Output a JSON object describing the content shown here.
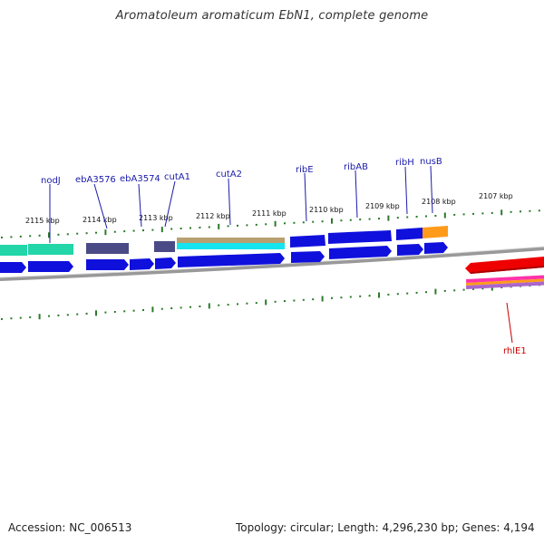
{
  "title": "Aromatoleum aromaticum EbN1, complete genome",
  "footer": {
    "accession": "Accession: NC_006513",
    "topology": "Topology: circular; Length: 4,296,230 bp; Genes: 4,194"
  },
  "colors": {
    "cds_forward": "#1010dd",
    "cds_reverse": "#1010dd",
    "trna_teal": "#22d6a8",
    "dark_slate": "#4a4a86",
    "cyan": "#15e5f0",
    "tan": "#b8a070",
    "orange": "#ff9a1a",
    "red": "#ee0000",
    "pink": "#ff33aa",
    "tick_green": "#2a7a2a",
    "label_blue": "#1a1aaa",
    "label_red": "#cc0000",
    "backbone": "#888888"
  },
  "kbp_labels": [
    "2115 kbp",
    "2114 kbp",
    "2113 kbp",
    "2112 kbp",
    "2111 kbp",
    "2110 kbp",
    "2109 kbp",
    "2108 kbp",
    "2107 kbp"
  ],
  "gene_labels": [
    "nodJ",
    "ebA3576",
    "ebA3574",
    "cutA1",
    "cutA2",
    "ribE",
    "ribAB",
    "ribH",
    "nusB",
    "rhlE1"
  ]
}
